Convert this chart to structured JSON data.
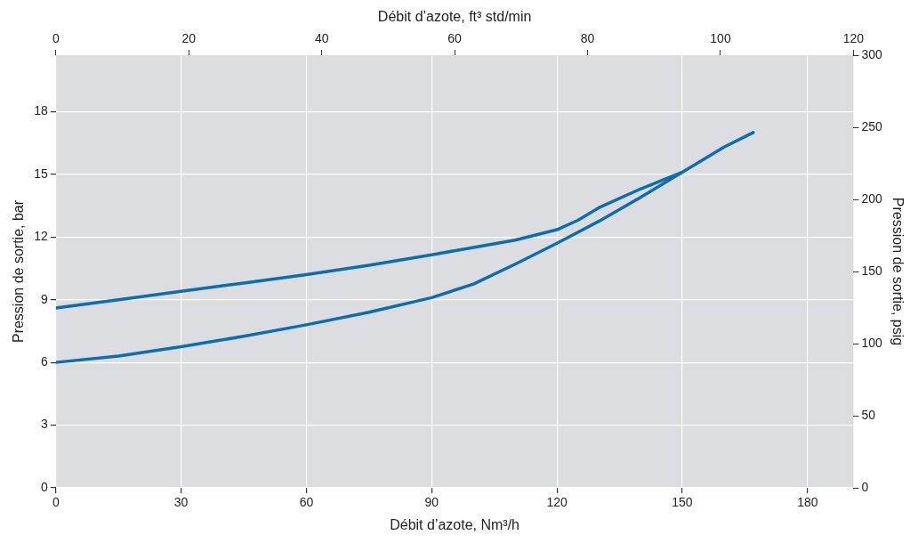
{
  "chart_data": {
    "type": "line",
    "xlabel": "Débit d’azote, Nm³/h",
    "x2label": "Débit d’azote, ft³ std/min",
    "ylabel": "Pression de sortie, bar",
    "y2label": "Pression de sortie, psig",
    "xlim": [
      0,
      191
    ],
    "xticks": [
      0,
      30,
      60,
      90,
      120,
      150,
      180
    ],
    "x2lim": [
      0,
      120
    ],
    "x2ticks": [
      0,
      20,
      40,
      60,
      80,
      100,
      120
    ],
    "ylim": [
      0,
      20.7
    ],
    "yticks": [
      0,
      3,
      6,
      9,
      12,
      15,
      18
    ],
    "y2lim": [
      0,
      300
    ],
    "y2ticks": [
      0,
      50,
      100,
      150,
      200,
      250,
      300
    ],
    "grid": true,
    "legend": false,
    "marker": "none",
    "line_style": "solid",
    "series": [
      {
        "color": "#0b6faf",
        "x": [
          0,
          15,
          30,
          45,
          60,
          75,
          90,
          100,
          110,
          120,
          125,
          130,
          140,
          150,
          160,
          167
        ],
        "values": [
          8.6,
          9.0,
          9.4,
          9.8,
          10.2,
          10.65,
          11.15,
          11.5,
          11.85,
          12.35,
          12.8,
          13.4,
          14.3,
          15.1,
          16.3,
          17.0
        ]
      },
      {
        "color": "#0b6faf",
        "x": [
          0,
          15,
          30,
          45,
          60,
          75,
          90,
          100,
          110,
          120,
          130,
          140,
          150
        ],
        "values": [
          6.0,
          6.3,
          6.75,
          7.25,
          7.8,
          8.4,
          9.1,
          9.75,
          10.7,
          11.7,
          12.75,
          13.9,
          15.1
        ]
      }
    ]
  }
}
